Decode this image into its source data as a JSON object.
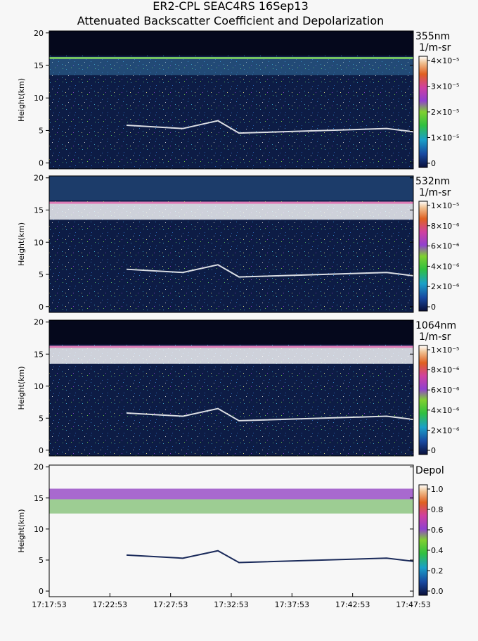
{
  "chart_data": [
    {
      "type": "heatmap",
      "title": "ER2-CPL SEAC4RS 16Sep13",
      "subtitle": "Attenuated Backscatter Coefficient and Depolarization",
      "label": "355nm",
      "unit": "1/m-sr",
      "ylabel": "Height(km)",
      "ylim": [
        -0.9,
        20.3
      ],
      "yticks": [
        0,
        5,
        10,
        15,
        20
      ],
      "clim": [
        0,
        4e-05
      ],
      "cticks": [
        0,
        {
          "value": 1e-05,
          "label": "1×10⁻⁵"
        },
        {
          "value": 2e-05,
          "label": "2×10⁻⁵"
        },
        {
          "value": 3e-05,
          "label": "3×10⁻⁵"
        },
        {
          "value": 4e-05,
          "label": "4×10⁻⁵"
        }
      ]
    },
    {
      "type": "heatmap",
      "label": "532nm",
      "unit": "1/m-sr",
      "ylabel": "Height(km)",
      "ylim": [
        -0.9,
        20.3
      ],
      "yticks": [
        0,
        5,
        10,
        15,
        20
      ],
      "clim": [
        0,
        1e-05
      ],
      "cticks": [
        0,
        {
          "value": 2e-06,
          "label": "2×10⁻⁶"
        },
        {
          "value": 4e-06,
          "label": "4×10⁻⁶"
        },
        {
          "value": 6e-06,
          "label": "6×10⁻⁶"
        },
        {
          "value": 8e-06,
          "label": "8×10⁻⁶"
        },
        {
          "value": 1e-05,
          "label": "1×10⁻⁵"
        }
      ]
    },
    {
      "type": "heatmap",
      "label": "1064nm",
      "unit": "1/m-sr",
      "ylabel": "Height(km)",
      "ylim": [
        -0.9,
        20.3
      ],
      "yticks": [
        0,
        5,
        10,
        15,
        20
      ],
      "clim": [
        0,
        1e-05
      ],
      "cticks": [
        0,
        {
          "value": 2e-06,
          "label": "2×10⁻⁶"
        },
        {
          "value": 4e-06,
          "label": "4×10⁻⁶"
        },
        {
          "value": 6e-06,
          "label": "6×10⁻⁶"
        },
        {
          "value": 8e-06,
          "label": "8×10⁻⁶"
        },
        {
          "value": 1e-05,
          "label": "1×10⁻⁵"
        }
      ]
    },
    {
      "type": "heatmap",
      "label": "Depol",
      "ylabel": "Height(km)",
      "ylim": [
        -0.9,
        20.3
      ],
      "yticks": [
        0,
        5,
        10,
        15,
        20
      ],
      "clim": [
        0,
        1
      ],
      "cticks": [
        {
          "value": 0,
          "label": "0.0"
        },
        0.2,
        0.4,
        0.6,
        0.8,
        {
          "value": 1,
          "label": "1.0"
        }
      ],
      "xticks": [
        "17:17:53",
        "17:22:53",
        "17:27:53",
        "17:32:53",
        "17:37:53",
        "17:42:53",
        "17:47:53"
      ]
    }
  ]
}
